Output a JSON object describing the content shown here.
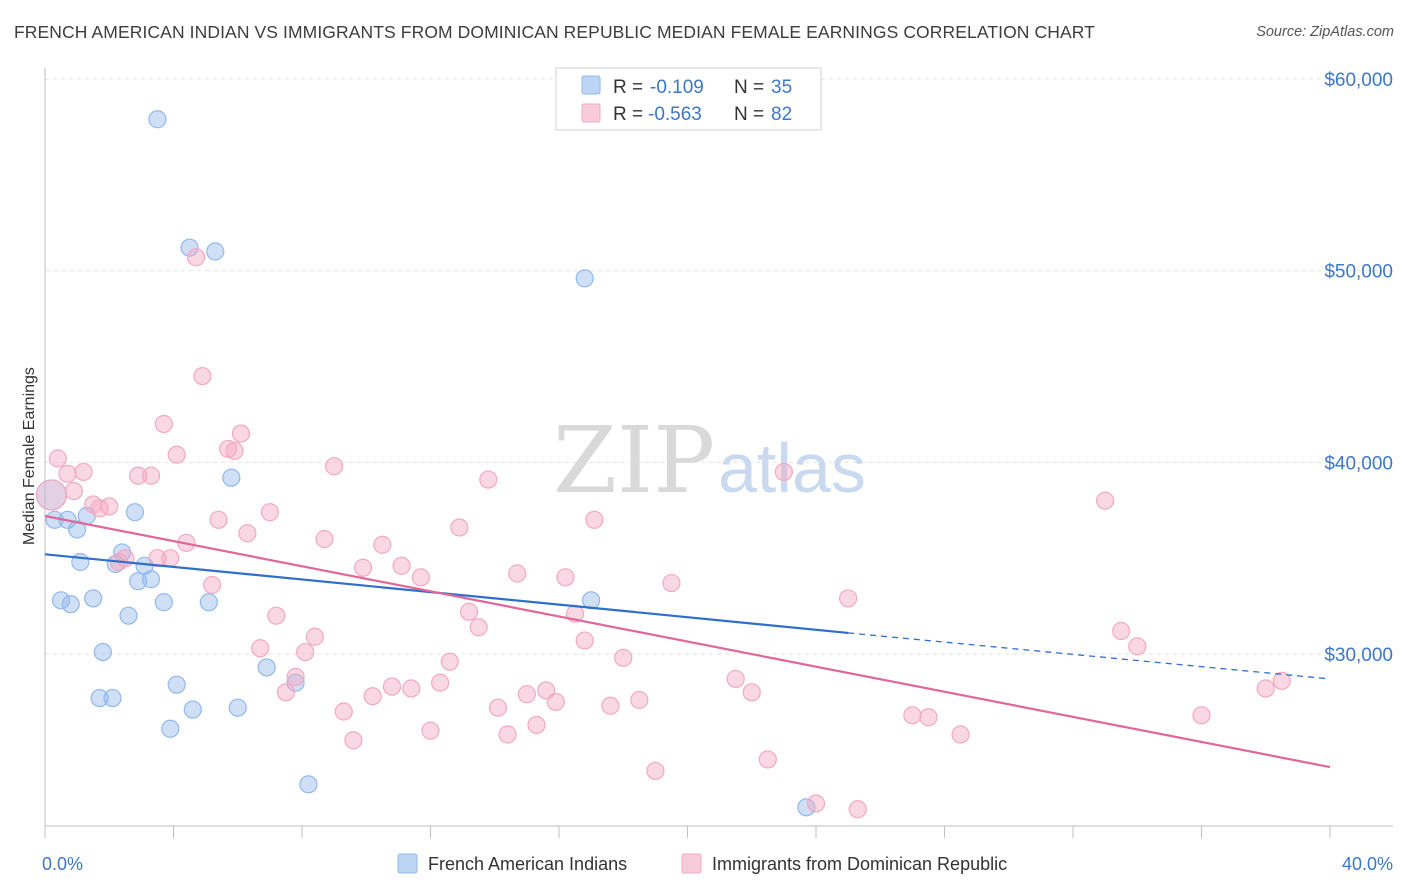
{
  "chart_data": {
    "type": "scatter",
    "title": "FRENCH AMERICAN INDIAN VS IMMIGRANTS FROM DOMINICAN REPUBLIC MEDIAN FEMALE EARNINGS CORRELATION CHART",
    "source": "Source: ZipAtlas.com",
    "ylabel": "Median Female Earnings",
    "xlabel": "",
    "xlim": [
      0,
      40
    ],
    "ylim": [
      20000,
      62000
    ],
    "x_tick_labels": {
      "left": "0.0%",
      "right": "40.0%"
    },
    "y_ticks": [
      {
        "value": 30000,
        "label": "$30,000"
      },
      {
        "value": 40000,
        "label": "$40,000"
      },
      {
        "value": 50000,
        "label": "$50,000"
      },
      {
        "value": 60000,
        "label": "$60,000"
      }
    ],
    "watermark": {
      "zip": "ZIP",
      "atlas": "atlas"
    },
    "legend": [
      {
        "r_label": "R =",
        "r": "-0.109",
        "n_label": "N =",
        "n": "35"
      },
      {
        "r_label": "R =",
        "r": "-0.563",
        "n_label": "N =",
        "n": "82"
      }
    ],
    "series": [
      {
        "name": "French American Indians",
        "color": "#92b8ec",
        "line_color": "#2f6fcc",
        "trend": {
          "x0": 0,
          "y0": 35200,
          "x1": 25,
          "y1": 31100,
          "dash_to_x": 40,
          "dash_to_y": 28700
        },
        "points": [
          [
            0.2,
            38300
          ],
          [
            0.3,
            37000
          ],
          [
            0.7,
            37000
          ],
          [
            1.0,
            36500
          ],
          [
            1.1,
            34800
          ],
          [
            1.3,
            37200
          ],
          [
            0.5,
            32800
          ],
          [
            0.8,
            32600
          ],
          [
            1.5,
            32900
          ],
          [
            1.8,
            30100
          ],
          [
            1.7,
            27700
          ],
          [
            2.1,
            27700
          ],
          [
            2.2,
            34700
          ],
          [
            2.4,
            35300
          ],
          [
            2.6,
            32000
          ],
          [
            2.8,
            37400
          ],
          [
            2.9,
            33800
          ],
          [
            3.1,
            34600
          ],
          [
            3.3,
            33900
          ],
          [
            3.7,
            32700
          ],
          [
            3.5,
            57900
          ],
          [
            4.1,
            28400
          ],
          [
            3.9,
            26100
          ],
          [
            4.6,
            27100
          ],
          [
            4.5,
            51200
          ],
          [
            5.3,
            51000
          ],
          [
            5.1,
            32700
          ],
          [
            5.8,
            39200
          ],
          [
            6.0,
            27200
          ],
          [
            6.9,
            29300
          ],
          [
            7.8,
            28500
          ],
          [
            8.2,
            23200
          ],
          [
            17.0,
            32800
          ],
          [
            16.8,
            49600
          ],
          [
            23.7,
            22000
          ]
        ]
      },
      {
        "name": "Immigrants from Dominican Republic",
        "color": "#f4a8c0",
        "line_color": "#e0679a",
        "trend": {
          "x0": 0,
          "y0": 37200,
          "x1": 40,
          "y1": 24100
        },
        "points": [
          [
            0.2,
            38300
          ],
          [
            0.4,
            40200
          ],
          [
            0.7,
            39400
          ],
          [
            0.9,
            38500
          ],
          [
            1.2,
            39500
          ],
          [
            1.5,
            37800
          ],
          [
            1.7,
            37600
          ],
          [
            2.0,
            37700
          ],
          [
            2.3,
            34800
          ],
          [
            2.5,
            35000
          ],
          [
            2.9,
            39300
          ],
          [
            3.3,
            39300
          ],
          [
            3.5,
            35000
          ],
          [
            3.7,
            42000
          ],
          [
            3.9,
            35000
          ],
          [
            4.1,
            40400
          ],
          [
            4.4,
            35800
          ],
          [
            4.7,
            50700
          ],
          [
            4.9,
            44500
          ],
          [
            5.2,
            33600
          ],
          [
            5.4,
            37000
          ],
          [
            5.7,
            40700
          ],
          [
            5.9,
            40600
          ],
          [
            6.1,
            41500
          ],
          [
            6.3,
            36300
          ],
          [
            6.7,
            30300
          ],
          [
            7.0,
            37400
          ],
          [
            7.2,
            32000
          ],
          [
            7.5,
            28000
          ],
          [
            7.8,
            28800
          ],
          [
            8.1,
            30100
          ],
          [
            8.4,
            30900
          ],
          [
            8.7,
            36000
          ],
          [
            9.0,
            39800
          ],
          [
            9.3,
            27000
          ],
          [
            9.6,
            25500
          ],
          [
            9.9,
            34500
          ],
          [
            10.2,
            27800
          ],
          [
            10.5,
            35700
          ],
          [
            10.8,
            28300
          ],
          [
            11.1,
            34600
          ],
          [
            11.4,
            28200
          ],
          [
            11.7,
            34000
          ],
          [
            12.0,
            26000
          ],
          [
            12.3,
            28500
          ],
          [
            12.6,
            29600
          ],
          [
            12.9,
            36600
          ],
          [
            13.2,
            32200
          ],
          [
            13.5,
            31400
          ],
          [
            13.8,
            39100
          ],
          [
            14.1,
            27200
          ],
          [
            14.4,
            25800
          ],
          [
            14.7,
            34200
          ],
          [
            15.0,
            27900
          ],
          [
            15.3,
            26300
          ],
          [
            15.6,
            28100
          ],
          [
            15.9,
            27500
          ],
          [
            16.2,
            34000
          ],
          [
            16.5,
            32100
          ],
          [
            16.8,
            30700
          ],
          [
            17.1,
            37000
          ],
          [
            17.6,
            27300
          ],
          [
            18.0,
            29800
          ],
          [
            18.5,
            27600
          ],
          [
            19.0,
            23900
          ],
          [
            19.5,
            33700
          ],
          [
            21.5,
            28700
          ],
          [
            22.0,
            28000
          ],
          [
            22.5,
            24500
          ],
          [
            23.0,
            39500
          ],
          [
            24.0,
            22200
          ],
          [
            25.0,
            32900
          ],
          [
            25.3,
            21900
          ],
          [
            27.0,
            26800
          ],
          [
            27.5,
            26700
          ],
          [
            28.5,
            25800
          ],
          [
            33.0,
            38000
          ],
          [
            33.5,
            31200
          ],
          [
            34.0,
            30400
          ],
          [
            36.0,
            26800
          ],
          [
            38.5,
            28600
          ],
          [
            38.0,
            28200
          ]
        ]
      }
    ]
  }
}
